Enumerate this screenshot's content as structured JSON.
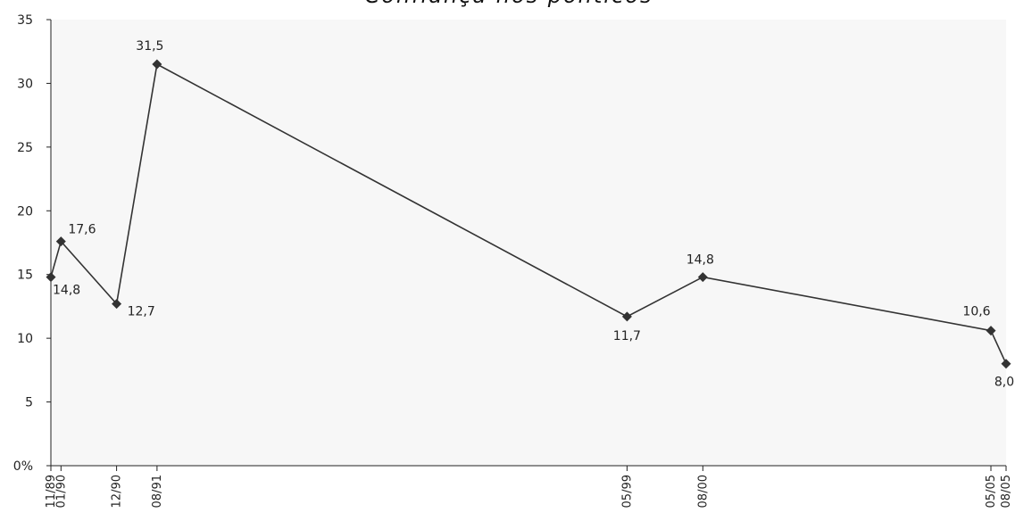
{
  "chart_data": {
    "type": "line",
    "title": "Confiança nos políticos",
    "xlabel": "",
    "ylabel": "",
    "ylim": [
      0,
      35
    ],
    "yticks": [
      0,
      5,
      10,
      15,
      20,
      25,
      30,
      35
    ],
    "ytick_labels": [
      "0%",
      "5",
      "10",
      "15",
      "20",
      "25",
      "30",
      "35"
    ],
    "x": [
      "11/89",
      "01/90",
      "12/90",
      "08/91",
      "05/99",
      "08/00",
      "05/05",
      "08/05"
    ],
    "series": [
      {
        "values": [
          14.8,
          17.6,
          12.7,
          31.5,
          11.7,
          14.8,
          10.6,
          8.0
        ],
        "labels": [
          "14,8",
          "17,6",
          "12,7",
          "31,5",
          "11,7",
          "14,8",
          "10,6",
          "8,0"
        ]
      }
    ],
    "grid": false,
    "colors": {
      "line": "#333333",
      "marker": "#333333",
      "plot_background": "#f7f7f7"
    }
  }
}
